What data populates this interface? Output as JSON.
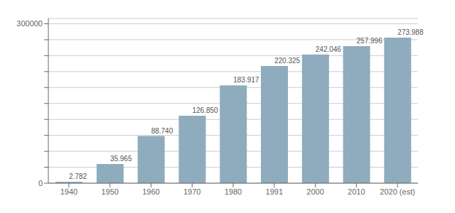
{
  "chart_data": {
    "type": "bar",
    "categories": [
      "1940",
      "1950",
      "1960",
      "1970",
      "1980",
      "1991",
      "2000",
      "2010",
      "2020 (est)"
    ],
    "values": [
      2782,
      35965,
      88740,
      126850,
      183917,
      220325,
      242046,
      257996,
      273988
    ],
    "value_labels": [
      "2.782",
      "35.965",
      "88.740",
      "126.850",
      "183.917",
      "220.325",
      "242.046",
      "257.996",
      "273.988"
    ],
    "data_labels": true,
    "color": "#8fabbe",
    "ylim": [
      0,
      310000
    ],
    "yticks": [
      0,
      {
        "value": 30000,
        "label": null
      },
      {
        "value": 60000,
        "label": null
      },
      {
        "value": 90000,
        "label": null
      },
      {
        "value": 120000,
        "label": null
      },
      {
        "value": 150000,
        "label": null
      },
      {
        "value": 180000,
        "label": null
      },
      {
        "value": 210000,
        "label": null
      },
      {
        "value": 240000,
        "label": null
      },
      {
        "value": 270000,
        "label": null
      },
      300000
    ],
    "grid": true
  }
}
